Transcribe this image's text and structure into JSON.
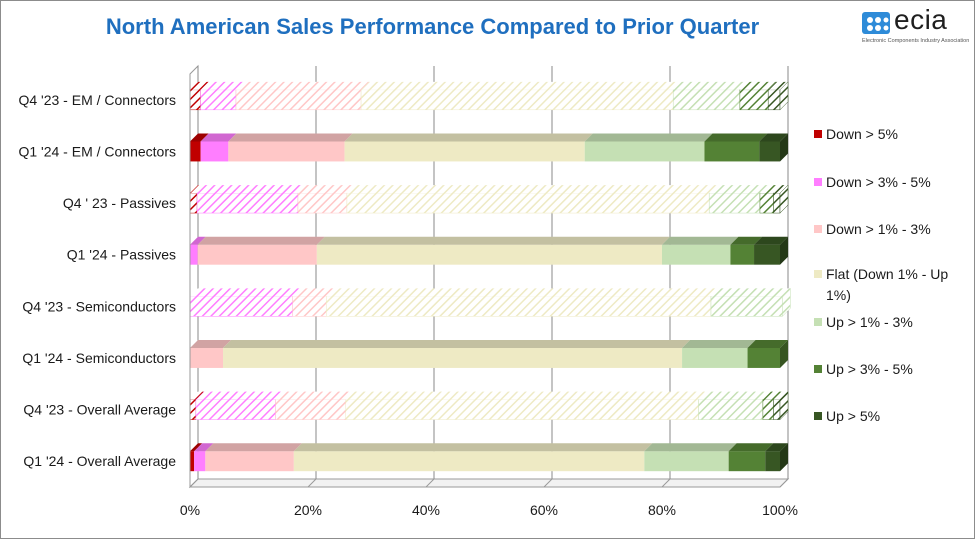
{
  "title": "North American Sales Performance Compared to Prior Quarter",
  "logo": {
    "word": "ecia",
    "tagline": "Electronic Components Industry Association"
  },
  "chart_data": {
    "type": "bar",
    "orientation": "horizontal",
    "stacked": "100%",
    "categories": [
      "Q4 '23 - EM / Connectors",
      "Q1 '24 - EM / Connectors",
      "Q4 ' 23 - Passives",
      "Q1 '24 - Passives",
      "Q4 '23 - Semiconductors",
      "Q1 '24 - Semiconductors",
      "Q4 '23 - Overall Average",
      "Q1 '24 - Overall Average"
    ],
    "series": [
      {
        "name": "Down > 5%",
        "color": "#c00000",
        "values": [
          1.8,
          1.8,
          1.2,
          0,
          0,
          0,
          1.0,
          0.7
        ]
      },
      {
        "name": "Down > 3% - 5%",
        "color": "#ff7eff",
        "values": [
          6.0,
          4.7,
          17.1,
          1.3,
          17.4,
          0,
          13.5,
          1.9
        ]
      },
      {
        "name": "Down > 1% - 3%",
        "color": "#ffc7c7",
        "values": [
          21.2,
          19.7,
          8.3,
          20.2,
          5.7,
          5.6,
          11.9,
          15.0
        ]
      },
      {
        "name": "Flat (Down 1% - Up 1%)",
        "color": "#eeeac4",
        "values": [
          52.9,
          40.7,
          61.4,
          58.5,
          65.2,
          77.8,
          59.8,
          59.4
        ]
      },
      {
        "name": "Up > 1% - 3%",
        "color": "#c5e0b4",
        "values": [
          11.3,
          20.3,
          8.6,
          11.6,
          12.1,
          11.1,
          10.9,
          14.3
        ]
      },
      {
        "name": "Up > 3% - 5%",
        "color": "#548235",
        "values": [
          4.8,
          9.3,
          2.3,
          4.0,
          0,
          5.5,
          1.8,
          6.2
        ]
      },
      {
        "name": "Up > 5%",
        "color": "#375623",
        "values": [
          2.0,
          3.5,
          1.1,
          4.4,
          0,
          0,
          1.1,
          2.5
        ]
      }
    ],
    "hatched_categories": [
      "Q4 '23 - EM / Connectors",
      "Q4 ' 23 - Passives",
      "Q4 '23 - Semiconductors",
      "Q4 '23 - Overall Average"
    ],
    "x_ticks": [
      "0%",
      "20%",
      "40%",
      "60%",
      "80%",
      "100%"
    ],
    "xlim": [
      0,
      100
    ],
    "grid": true,
    "legend_position": "right"
  }
}
